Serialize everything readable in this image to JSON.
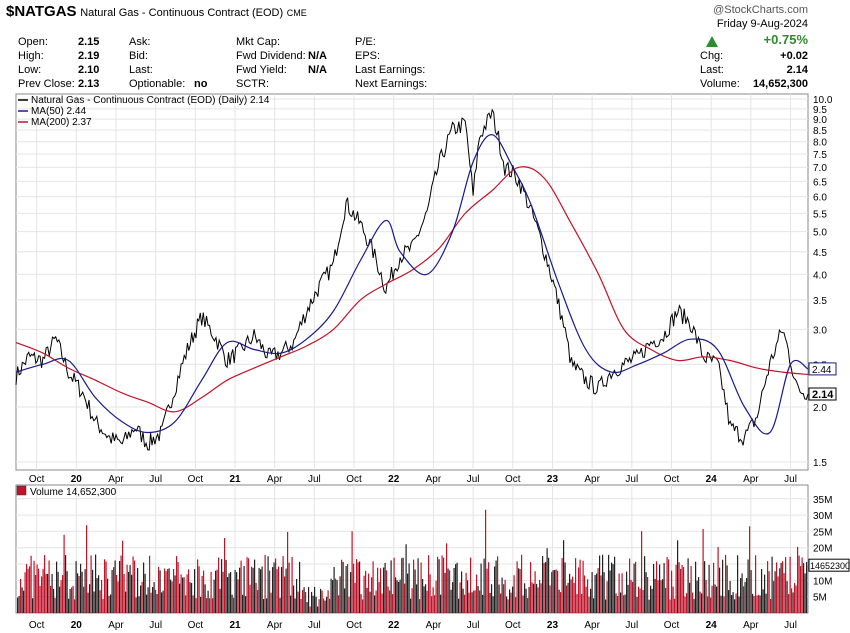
{
  "header": {
    "symbol": "$NATGAS",
    "name": "Natural Gas - Continuous Contract (EOD)",
    "exchange": "CME",
    "brand": "@StockCharts.com",
    "date": "Friday  9-Aug-2024",
    "pct_change": "+0.75%",
    "change_color": "#2e8b2e"
  },
  "quote": {
    "open_label": "Open:",
    "open": "2.15",
    "high_label": "High:",
    "high": "2.19",
    "low_label": "Low:",
    "low": "2.10",
    "prev_label": "Prev Close:",
    "prev": "2.13",
    "ask_label": "Ask:",
    "bid_label": "Bid:",
    "last_label": "Last:",
    "optionable_label": "Optionable:",
    "optionable": "no",
    "mktcap_label": "Mkt Cap:",
    "fwddiv_label": "Fwd Dividend:",
    "fwddiv": "N/A",
    "fwdyield_label": "Fwd Yield:",
    "fwdyield": "N/A",
    "sctr_label": "SCTR:",
    "pe_label": "P/E:",
    "eps_label": "EPS:",
    "lastearn_label": "Last Earnings:",
    "nextearn_label": "Next Earnings:",
    "chg_label": "Chg:",
    "chg": "+0.02",
    "last2_label": "Last:",
    "last2": "2.14",
    "volume_label": "Volume:",
    "volume": "14,652,300"
  },
  "chart_data": {
    "type": "line",
    "title": "$NATGAS Natural Gas - Continuous Contract (EOD) CME",
    "legend": [
      {
        "text": "Natural Gas - Continuous Contract (EOD) (Daily) 2.14",
        "color": "#000000"
      },
      {
        "text": "MA(50) 2.44",
        "color": "#1a1a8c"
      },
      {
        "text": "MA(200) 2.37",
        "color": "#c0142a"
      }
    ],
    "x_labels": [
      "Oct",
      "20",
      "Apr",
      "Jul",
      "Oct",
      "21",
      "Apr",
      "Jul",
      "Oct",
      "22",
      "Apr",
      "Jul",
      "Oct",
      "23",
      "Apr",
      "Jul",
      "Oct",
      "24",
      "Apr",
      "Jul"
    ],
    "x_range": [
      2019.62,
      2024.61
    ],
    "y_ticks": [
      "10.0",
      "9.5",
      "9.0",
      "8.5",
      "8.0",
      "7.5",
      "7.0",
      "6.5",
      "6.0",
      "5.5",
      "5.0",
      "4.5",
      "4.0",
      "3.5",
      "3.0",
      "2.5",
      "2.0",
      "1.5"
    ],
    "ylim": [
      1.5,
      10.0
    ],
    "y_scale": "log",
    "price_tags": [
      {
        "text": "2.44",
        "value": 2.44,
        "style": "outline"
      },
      {
        "text": "2.14",
        "value": 2.14,
        "style": "filled"
      }
    ],
    "series": [
      {
        "name": "Natural Gas - Continuous Contract (EOD) (Daily)",
        "color": "#000000",
        "x": [
          2019.62,
          2019.7,
          2019.79,
          2019.87,
          2019.95,
          2020.04,
          2020.12,
          2020.21,
          2020.29,
          2020.37,
          2020.45,
          2020.54,
          2020.62,
          2020.7,
          2020.79,
          2020.87,
          2020.95,
          2021.04,
          2021.12,
          2021.21,
          2021.29,
          2021.37,
          2021.45,
          2021.54,
          2021.62,
          2021.7,
          2021.79,
          2021.87,
          2021.95,
          2022.04,
          2022.12,
          2022.21,
          2022.29,
          2022.37,
          2022.45,
          2022.5,
          2022.54,
          2022.62,
          2022.7,
          2022.75,
          2022.79,
          2022.87,
          2022.95,
          2023.04,
          2023.12,
          2023.21,
          2023.29,
          2023.37,
          2023.45,
          2023.54,
          2023.62,
          2023.7,
          2023.79,
          2023.87,
          2023.95,
          2024.04,
          2024.12,
          2024.21,
          2024.29,
          2024.37,
          2024.45,
          2024.54,
          2024.61
        ],
        "y": [
          2.35,
          2.6,
          2.55,
          2.85,
          2.4,
          2.15,
          1.85,
          1.7,
          1.65,
          1.8,
          1.65,
          1.75,
          2.2,
          2.7,
          3.2,
          2.9,
          2.55,
          2.7,
          2.9,
          2.6,
          2.65,
          2.8,
          3.3,
          3.8,
          4.2,
          5.8,
          5.2,
          4.5,
          3.7,
          4.4,
          4.6,
          5.5,
          7.2,
          8.5,
          8.8,
          6.0,
          8.2,
          9.3,
          7.0,
          6.8,
          6.5,
          5.5,
          4.5,
          3.4,
          2.5,
          2.3,
          2.2,
          2.4,
          2.5,
          2.6,
          2.8,
          2.9,
          3.3,
          3.1,
          2.6,
          2.5,
          1.8,
          1.7,
          1.9,
          2.5,
          3.0,
          2.2,
          2.14
        ]
      },
      {
        "name": "MA(50)",
        "color": "#1a1a8c",
        "x": [
          2019.62,
          2019.79,
          2019.95,
          2020.12,
          2020.29,
          2020.45,
          2020.62,
          2020.79,
          2020.95,
          2021.12,
          2021.29,
          2021.45,
          2021.62,
          2021.79,
          2021.95,
          2022.04,
          2022.21,
          2022.37,
          2022.5,
          2022.62,
          2022.75,
          2022.87,
          2023.04,
          2023.21,
          2023.37,
          2023.54,
          2023.7,
          2023.87,
          2024.04,
          2024.21,
          2024.37,
          2024.5,
          2024.61
        ],
        "y": [
          2.4,
          2.5,
          2.55,
          2.1,
          1.85,
          1.75,
          1.85,
          2.3,
          2.8,
          2.7,
          2.65,
          2.85,
          3.3,
          4.3,
          5.3,
          4.5,
          4.0,
          5.0,
          7.2,
          8.3,
          7.0,
          5.7,
          3.8,
          2.7,
          2.4,
          2.5,
          2.65,
          2.85,
          2.7,
          2.0,
          1.75,
          2.5,
          2.44
        ]
      },
      {
        "name": "MA(200)",
        "color": "#c0142a",
        "x": [
          2019.62,
          2019.79,
          2019.95,
          2020.12,
          2020.29,
          2020.45,
          2020.62,
          2020.79,
          2020.95,
          2021.12,
          2021.29,
          2021.45,
          2021.62,
          2021.79,
          2021.95,
          2022.12,
          2022.29,
          2022.45,
          2022.62,
          2022.79,
          2022.95,
          2023.12,
          2023.29,
          2023.45,
          2023.62,
          2023.79,
          2023.95,
          2024.12,
          2024.29,
          2024.45,
          2024.61
        ],
        "y": [
          2.8,
          2.65,
          2.45,
          2.3,
          2.15,
          2.05,
          1.95,
          2.1,
          2.3,
          2.45,
          2.6,
          2.75,
          3.0,
          3.5,
          3.8,
          4.1,
          4.6,
          5.5,
          6.2,
          7.0,
          6.6,
          5.2,
          4.0,
          3.0,
          2.7,
          2.55,
          2.6,
          2.55,
          2.45,
          2.4,
          2.37
        ]
      }
    ],
    "volume": {
      "label": "Volume 14,652,300",
      "y_ticks": [
        "35M",
        "30M",
        "25M",
        "20M",
        "15M",
        "10M",
        "5M"
      ],
      "ylim": [
        0,
        38
      ],
      "latest_tag": "14652300",
      "latest": 14.6523,
      "color_up": "#222222",
      "color_down": "#c0142a",
      "x_labels": [
        "Oct",
        "20",
        "Apr",
        "Jul",
        "Oct",
        "21",
        "Apr",
        "Jul",
        "Oct",
        "22",
        "Apr",
        "Jul",
        "Oct",
        "23",
        "Apr",
        "Jul",
        "Oct",
        "24",
        "Apr",
        "Jul"
      ]
    }
  }
}
